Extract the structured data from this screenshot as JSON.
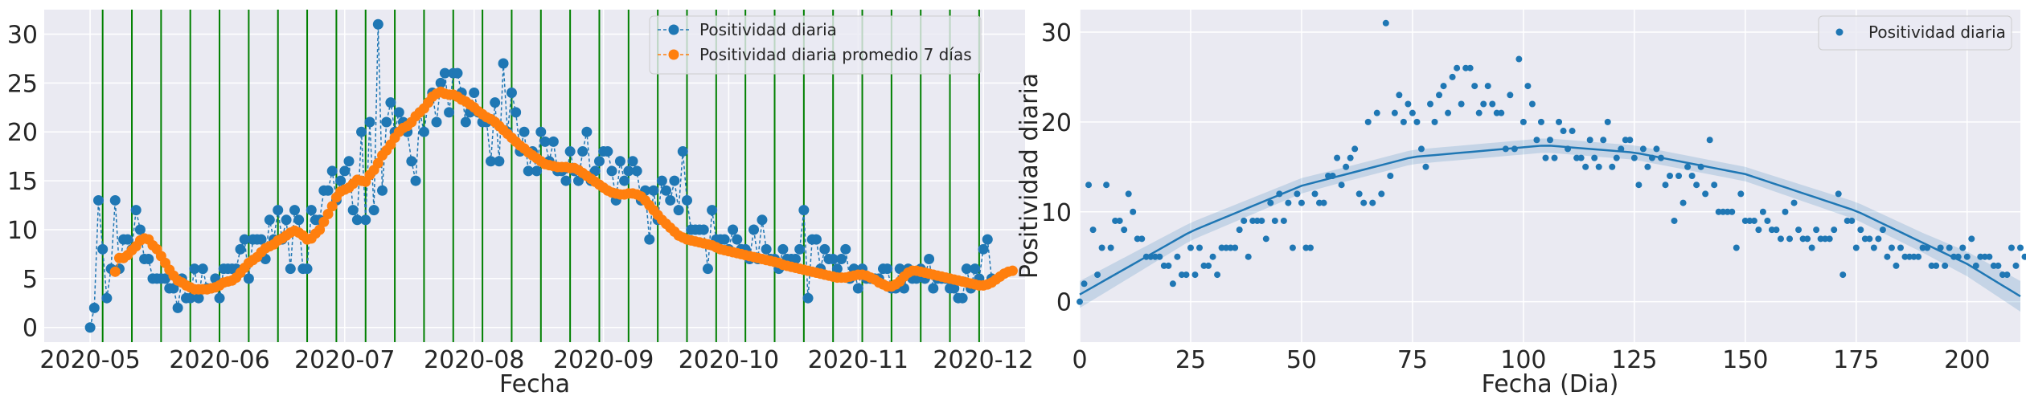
{
  "chart_data": [
    {
      "type": "line",
      "xlabel": "Fecha",
      "ylabel": "",
      "x_ticks": [
        "2020-05",
        "2020-06",
        "2020-07",
        "2020-08",
        "2020-09",
        "2020-10",
        "2020-11",
        "2020-12"
      ],
      "x_tick_days": [
        0,
        31,
        61,
        92,
        123,
        153,
        184,
        214
      ],
      "y_ticks": [
        0,
        5,
        10,
        15,
        20,
        25,
        30
      ],
      "xlim_days": [
        -11,
        224
      ],
      "ylim": [
        -1.5,
        32.5
      ],
      "grid": true,
      "legend_position": "top-right",
      "vertical_line_days": [
        3,
        10,
        17,
        24,
        31,
        38,
        45,
        52,
        59,
        66,
        73,
        80,
        87,
        94,
        101,
        108,
        115,
        122,
        129,
        136,
        143,
        150,
        157,
        164,
        171,
        178,
        185,
        192,
        199,
        206,
        213
      ],
      "series": [
        {
          "name": "Positividad diaria",
          "color": "#1f77b4",
          "style": "dashed-marker",
          "values": [
            0,
            2,
            13,
            8,
            3,
            6,
            13,
            6,
            9,
            9,
            8,
            12,
            10,
            7,
            7,
            5,
            5,
            5,
            5,
            4,
            4,
            2,
            5,
            3,
            3,
            6,
            3,
            6,
            4,
            4,
            5,
            3,
            6,
            6,
            6,
            6,
            8,
            9,
            5,
            9,
            9,
            9,
            7,
            11,
            9,
            12,
            9,
            11,
            6,
            12,
            11,
            6,
            6,
            12,
            11,
            11,
            14,
            14,
            16,
            13,
            15,
            16,
            17,
            12,
            11,
            20,
            11,
            21,
            12,
            31,
            14,
            21,
            23,
            20,
            22,
            21,
            20,
            17,
            15,
            22,
            20,
            23,
            24,
            21,
            25,
            26,
            22,
            26,
            26,
            24,
            21,
            22,
            24,
            22,
            21,
            21,
            17,
            23,
            17,
            27,
            20,
            24,
            22,
            18,
            20,
            16,
            18,
            16,
            20,
            19,
            17,
            19,
            16,
            16,
            15,
            18,
            16,
            15,
            18,
            20,
            15,
            16,
            17,
            18,
            18,
            16,
            13,
            17,
            15,
            16,
            17,
            16,
            13,
            14,
            9,
            14,
            11,
            15,
            14,
            13,
            15,
            12,
            18,
            13,
            10,
            10,
            10,
            10,
            6,
            12,
            9,
            9,
            9,
            8,
            10,
            9,
            8,
            8,
            7,
            10,
            7,
            11,
            8,
            7,
            7,
            6,
            8,
            7,
            7,
            7,
            8,
            12,
            3,
            9,
            9,
            6,
            8,
            7,
            7,
            6,
            7,
            8,
            5,
            6,
            4,
            6,
            5,
            5,
            5,
            5,
            6,
            6,
            4,
            4,
            6,
            4,
            6,
            5,
            5,
            6,
            5,
            7,
            4,
            5,
            5,
            5,
            4,
            4,
            3,
            3,
            6,
            4,
            6,
            5,
            8,
            9,
            5
          ]
        },
        {
          "name": "Positividad diaria promedio 7 días",
          "color": "#ff7f0e",
          "style": "dashed-marker",
          "start_day": 6,
          "values": [
            5.7,
            7.1,
            7.1,
            7.4,
            7.9,
            8.3,
            8.9,
            9.1,
            9.0,
            8.4,
            8.0,
            7.3,
            6.6,
            5.9,
            5.3,
            4.8,
            4.6,
            4.3,
            4.1,
            3.9,
            3.9,
            3.9,
            3.9,
            4.0,
            4.1,
            4.3,
            4.6,
            4.7,
            4.8,
            5.1,
            5.6,
            6.1,
            6.6,
            6.9,
            7.2,
            7.7,
            8.1,
            8.3,
            8.5,
            8.9,
            9.1,
            9.4,
            9.7,
            9.9,
            9.7,
            9.4,
            9.0,
            9.1,
            9.6,
            10.0,
            10.8,
            11.6,
            12.4,
            13.3,
            13.9,
            14.1,
            14.3,
            14.7,
            15.1,
            15.0,
            14.9,
            15.6,
            16.1,
            16.8,
            17.6,
            18.1,
            18.7,
            19.4,
            20.0,
            20.4,
            20.6,
            21.0,
            21.6,
            22.0,
            22.4,
            23.0,
            23.6,
            23.9,
            24.1,
            23.9,
            23.8,
            23.8,
            23.6,
            23.3,
            23.1,
            22.8,
            22.5,
            22.1,
            21.8,
            21.5,
            21.3,
            21.0,
            20.6,
            20.2,
            19.8,
            19.4,
            19.0,
            18.6,
            18.3,
            17.9,
            17.6,
            17.3,
            17.0,
            16.7,
            16.6,
            16.5,
            16.4,
            16.4,
            16.4,
            16.3,
            16.3,
            16.1,
            15.8,
            15.5,
            15.2,
            14.9,
            14.6,
            14.3,
            14.0,
            13.8,
            13.7,
            13.6,
            13.6,
            13.7,
            13.7,
            13.6,
            13.4,
            13.0,
            12.5,
            12.0,
            11.5,
            11.0,
            10.6,
            10.2,
            9.8,
            9.4,
            9.2,
            9.0,
            8.9,
            8.8,
            8.7,
            8.6,
            8.5,
            8.4,
            8.2,
            8.0,
            7.9,
            7.8,
            7.7,
            7.6,
            7.5,
            7.4,
            7.3,
            7.2,
            7.1,
            7.0,
            6.9,
            6.8,
            6.7,
            6.6,
            6.4,
            6.3,
            6.2,
            6.1,
            6.0,
            5.9,
            5.8,
            5.7,
            5.6,
            5.5,
            5.4,
            5.3,
            5.2,
            5.1,
            5.1,
            5.1,
            5.2,
            5.3,
            5.4,
            5.4,
            5.3,
            5.1,
            4.9,
            4.6,
            4.4,
            4.2,
            4.2,
            4.4,
            4.7,
            5.2,
            5.6,
            5.8,
            5.8,
            5.7,
            5.6,
            5.5,
            5.4,
            5.3,
            5.2,
            5.1,
            5.0,
            4.9,
            4.8,
            4.7,
            4.6,
            4.5,
            4.4,
            4.3,
            4.3,
            4.4,
            4.6,
            4.9,
            5.2,
            5.5,
            5.7,
            5.8
          ]
        }
      ]
    },
    {
      "type": "scatter",
      "xlabel": "Fecha (Dia)",
      "ylabel": "Positividad diaria",
      "x_ticks": [
        0,
        25,
        50,
        75,
        100,
        125,
        150,
        175,
        200
      ],
      "y_ticks": [
        0,
        10,
        20,
        30
      ],
      "xlim": [
        0,
        212
      ],
      "ylim": [
        -4.5,
        32.5
      ],
      "grid": true,
      "legend_position": "top-right",
      "series": [
        {
          "name": "Positividad diaria",
          "color": "#1f77b4",
          "note_points": "same daily values as left chart, x = day index"
        }
      ],
      "fit": {
        "type": "quadratic",
        "color": "#1f77b4",
        "y_at": [
          [
            0,
            0.8
          ],
          [
            25,
            7.8
          ],
          [
            50,
            12.9
          ],
          [
            75,
            16.1
          ],
          [
            105,
            17.4
          ],
          [
            125,
            16.6
          ],
          [
            150,
            14.2
          ],
          [
            175,
            10.1
          ],
          [
            200,
            4.2
          ],
          [
            212,
            0.6
          ]
        ],
        "ci_halfwidth": [
          [
            0,
            1.5
          ],
          [
            25,
            1.0
          ],
          [
            60,
            0.8
          ],
          [
            105,
            0.8
          ],
          [
            150,
            0.8
          ],
          [
            190,
            1.1
          ],
          [
            212,
            1.7
          ]
        ]
      }
    }
  ]
}
